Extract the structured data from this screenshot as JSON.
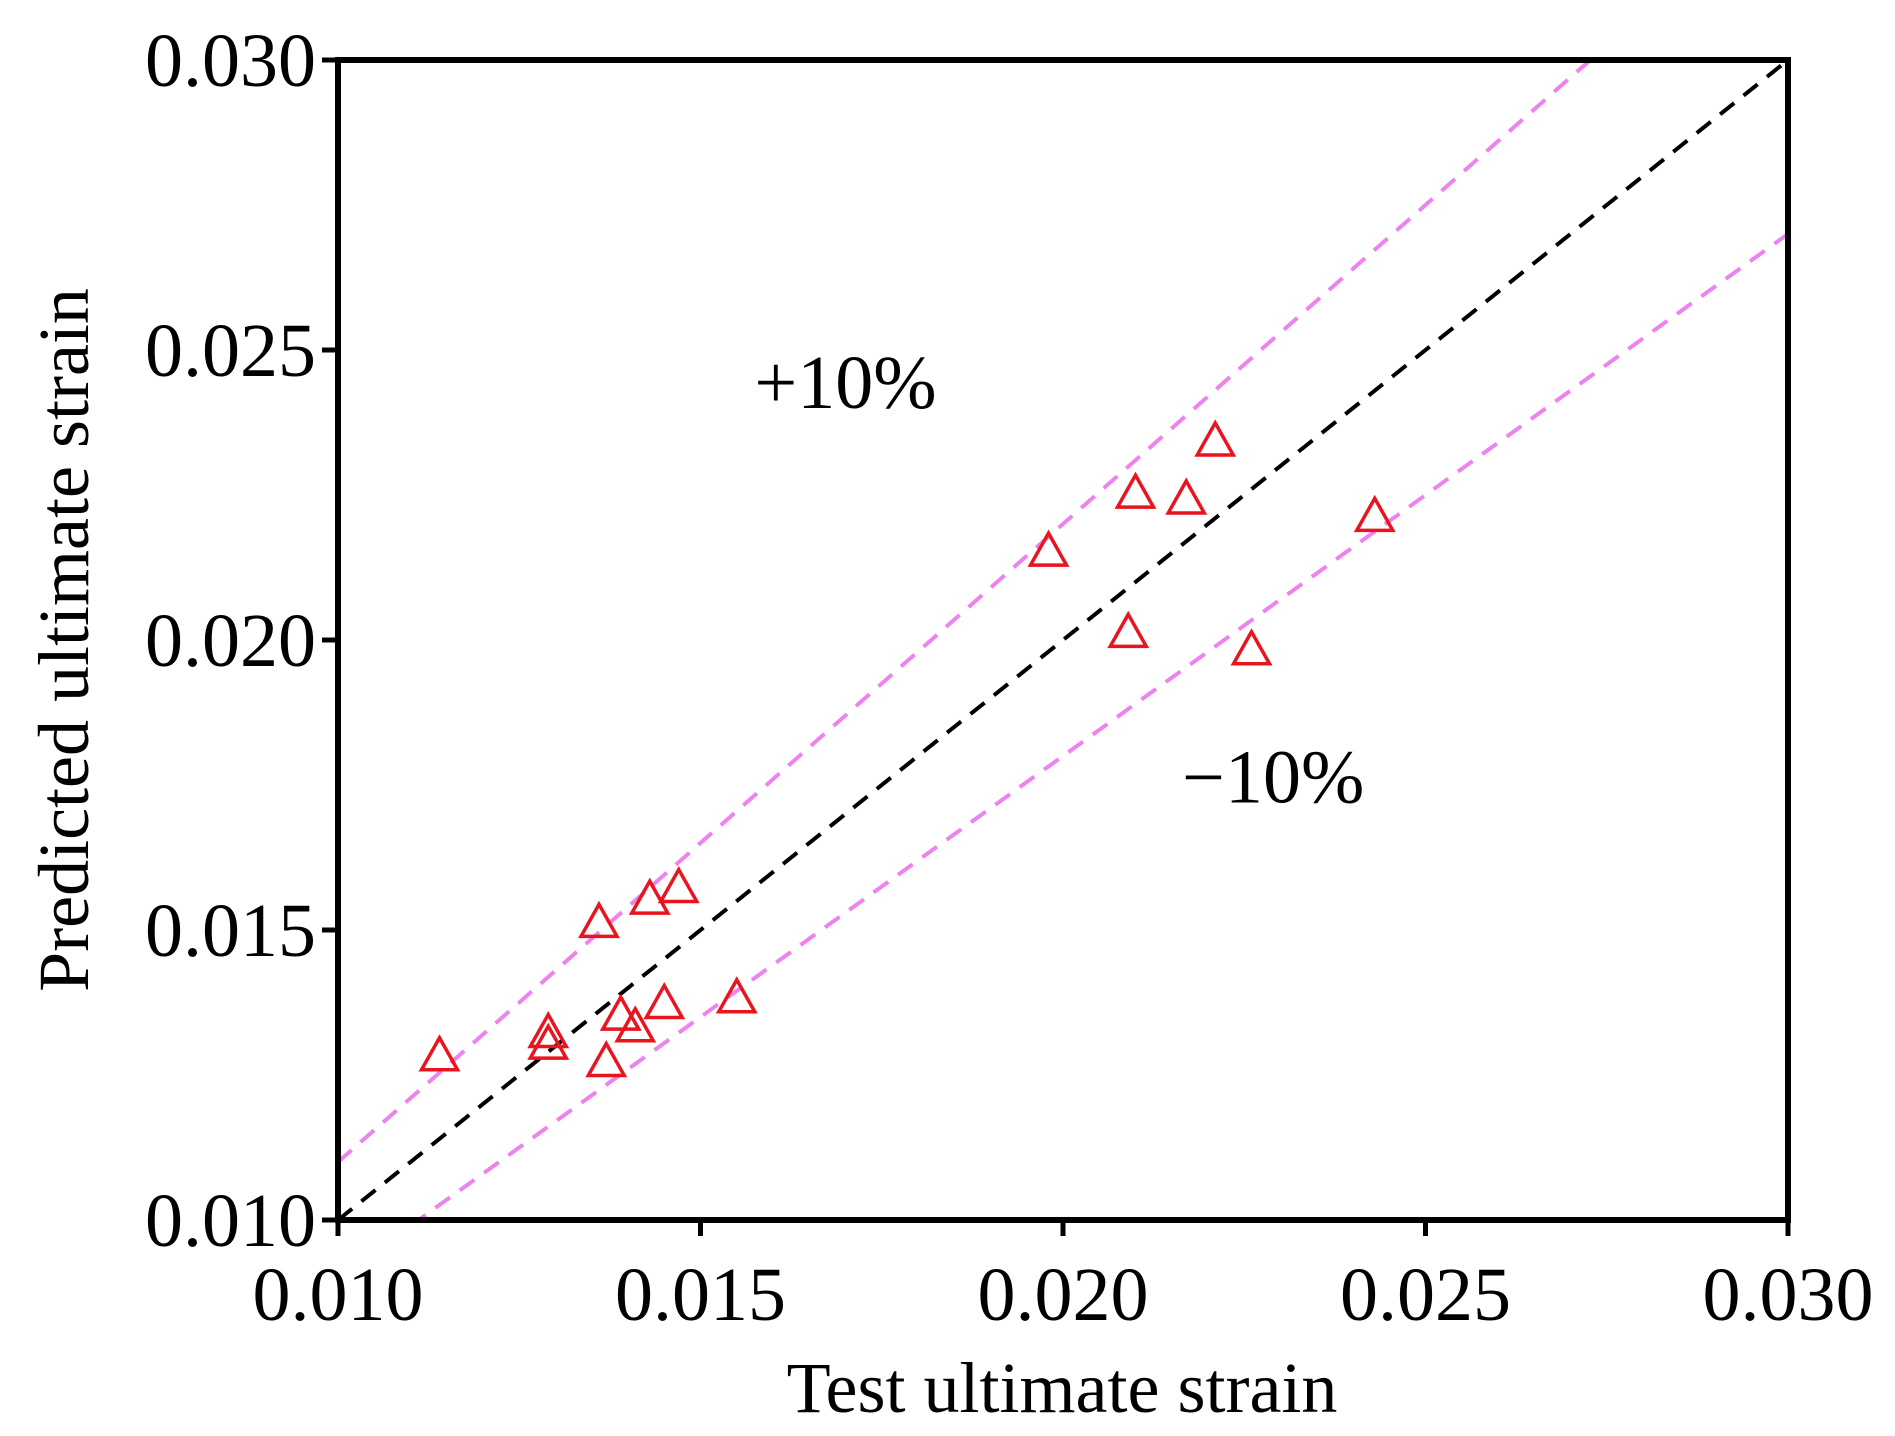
{
  "chart_data": {
    "type": "scatter",
    "xlabel": "Test ultimate strain",
    "ylabel": "Predicted ultimate strain",
    "xlim": [
      0.01,
      0.03
    ],
    "ylim": [
      0.01,
      0.03
    ],
    "x_ticks": [
      "0.010",
      "0.015",
      "0.020",
      "0.025",
      "0.030"
    ],
    "y_ticks": [
      "0.010",
      "0.015",
      "0.020",
      "0.025",
      "0.030"
    ],
    "grid": false,
    "legend": "none",
    "marker": "open-triangle",
    "colors": {
      "points": "#e8141e",
      "reference_line": "#000000",
      "bound_lines": "#ee82ee"
    },
    "reference_lines": [
      {
        "kind": "identity",
        "slope": 1.0,
        "style": "dashed"
      },
      {
        "kind": "upper-bound",
        "slope": 1.1,
        "style": "dashed"
      },
      {
        "kind": "lower-bound",
        "slope": 0.9,
        "style": "dashed"
      }
    ],
    "annotations": [
      {
        "text": "+10%",
        "x": 0.017,
        "y": 0.024
      },
      {
        "text": "−10%",
        "x": 0.0229,
        "y": 0.0172
      }
    ],
    "points": [
      {
        "x": 0.0114,
        "y": 0.0128
      },
      {
        "x": 0.0129,
        "y": 0.0132
      },
      {
        "x": 0.0129,
        "y": 0.013
      },
      {
        "x": 0.0136,
        "y": 0.0151
      },
      {
        "x": 0.0137,
        "y": 0.0127
      },
      {
        "x": 0.0139,
        "y": 0.0135
      },
      {
        "x": 0.0141,
        "y": 0.0133
      },
      {
        "x": 0.0143,
        "y": 0.0155
      },
      {
        "x": 0.0145,
        "y": 0.0137
      },
      {
        "x": 0.0147,
        "y": 0.0157
      },
      {
        "x": 0.0155,
        "y": 0.0138
      },
      {
        "x": 0.0198,
        "y": 0.0215
      },
      {
        "x": 0.0209,
        "y": 0.0201
      },
      {
        "x": 0.021,
        "y": 0.0225
      },
      {
        "x": 0.0217,
        "y": 0.0224
      },
      {
        "x": 0.0221,
        "y": 0.0234
      },
      {
        "x": 0.0226,
        "y": 0.0198
      },
      {
        "x": 0.0243,
        "y": 0.0221
      }
    ]
  }
}
